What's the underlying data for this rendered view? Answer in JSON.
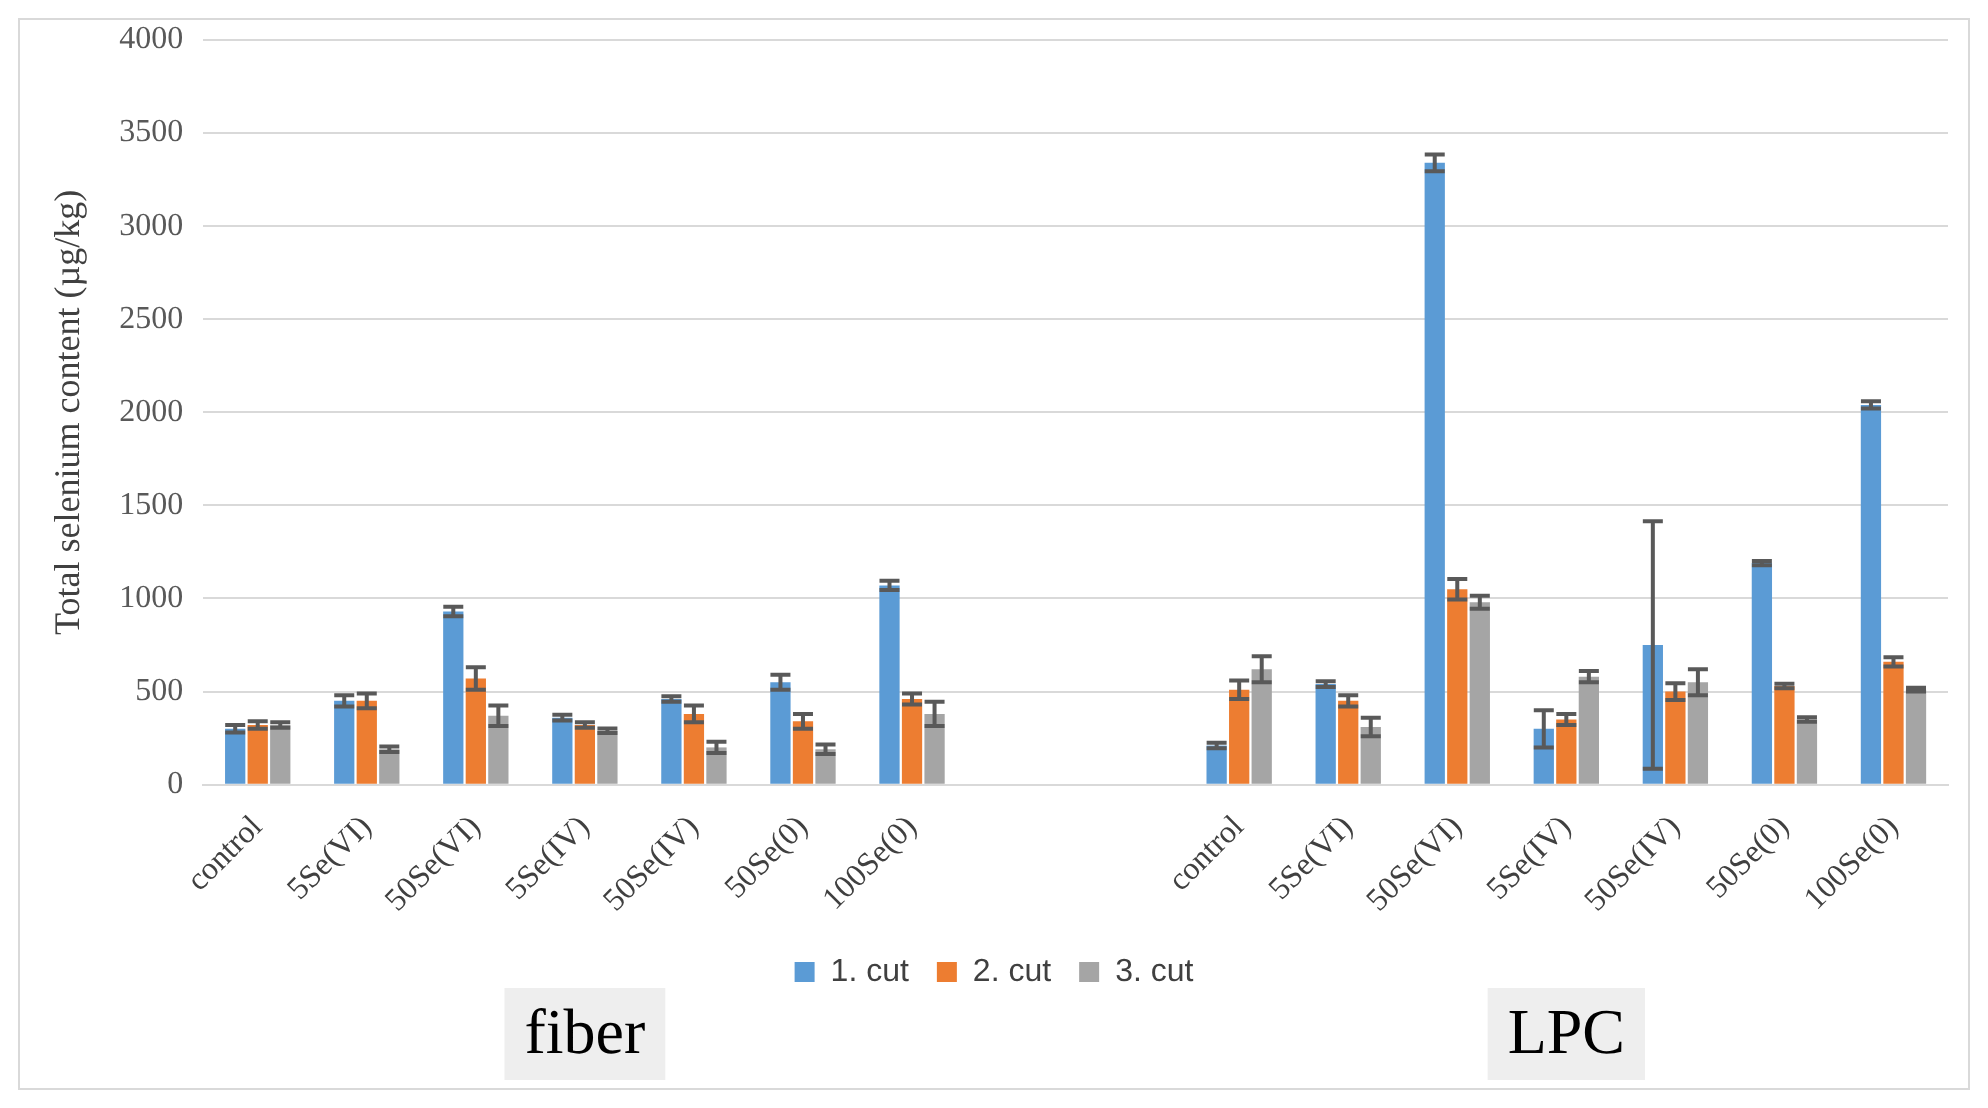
{
  "chart_data": {
    "type": "bar",
    "ylabel": "Total selenium content (µg/kg)",
    "categories": [
      "control",
      "5Se(VI)",
      "50Se(VI)",
      "5Se(IV)",
      "50Se(IV)",
      "50Se(0)",
      "100Se(0)",
      null,
      null,
      "control",
      "5Se(VI)",
      "50Se(VI)",
      "5Se(IV)",
      "50Se(IV)",
      "50Se(0)",
      "100Se(0)"
    ],
    "series": [
      {
        "name": "1. cut",
        "color": "#5b9bd5",
        "values": [
          300,
          450,
          930,
          360,
          460,
          550,
          1070,
          null,
          null,
          210,
          540,
          3340,
          300,
          750,
          1190,
          2040
        ],
        "errors": [
          20,
          30,
          25,
          15,
          15,
          40,
          25,
          null,
          null,
          15,
          15,
          45,
          100,
          665,
          12,
          20
        ]
      },
      {
        "name": "2. cut",
        "color": "#ed7d31",
        "values": [
          320,
          450,
          570,
          320,
          380,
          340,
          460,
          null,
          null,
          510,
          450,
          1050,
          350,
          500,
          530,
          660
        ],
        "errors": [
          20,
          40,
          60,
          15,
          45,
          40,
          30,
          null,
          null,
          50,
          30,
          55,
          30,
          45,
          12,
          25
        ]
      },
      {
        "name": "3. cut",
        "color": "#a5a5a5",
        "values": [
          320,
          190,
          370,
          290,
          200,
          190,
          380,
          null,
          null,
          620,
          310,
          980,
          580,
          550,
          350,
          510
        ],
        "errors": [
          15,
          15,
          55,
          12,
          30,
          25,
          65,
          null,
          null,
          70,
          50,
          35,
          30,
          70,
          12,
          10
        ]
      }
    ],
    "ylim": [
      0,
      4000
    ],
    "yticks": [
      0,
      500,
      1000,
      1500,
      2000,
      2500,
      3000,
      3500,
      4000
    ],
    "grid": "y",
    "legend": "bottom",
    "annotations": [
      "fiber",
      "LPC"
    ]
  }
}
